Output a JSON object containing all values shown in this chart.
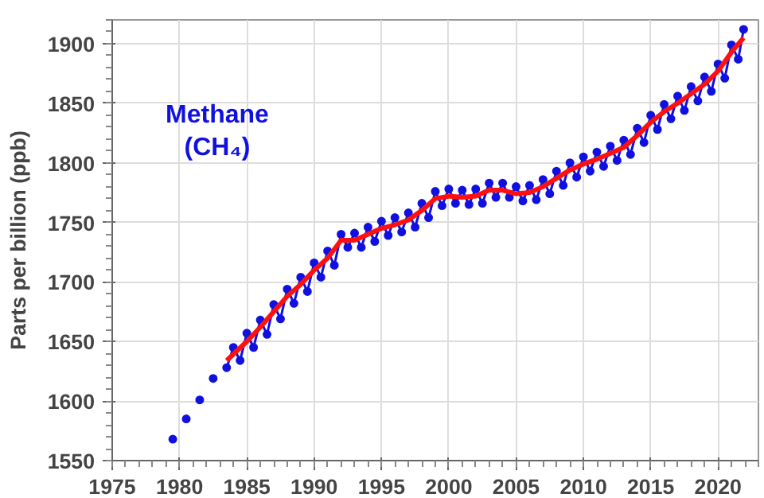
{
  "chart_data": {
    "type": "line",
    "ylabel": "Parts per billion (ppb)",
    "annotations": [
      "Methane\n(CH₄)"
    ],
    "xlim": [
      1975,
      2023
    ],
    "xticks": [
      1975,
      1980,
      1985,
      1990,
      1995,
      2000,
      2005,
      2010,
      2015,
      2020
    ],
    "ylim": [
      1550,
      1920
    ],
    "yticks": [
      1550,
      1600,
      1650,
      1700,
      1750,
      1800,
      1850,
      1900
    ],
    "grid": true,
    "series": [
      {
        "type": "scatter",
        "color": "#1010e0",
        "marker": "circle",
        "x": [
          1979.5,
          1980.5,
          1981.5,
          1982.5
        ],
        "values": [
          1568,
          1585,
          1601,
          1619
        ]
      },
      {
        "color": "#1010e0",
        "marker": "circle",
        "x": [
          1983.5,
          1984.0,
          1984.5,
          1985.0,
          1985.5,
          1986.0,
          1986.5,
          1987.0,
          1987.5,
          1988.0,
          1988.5,
          1989.0,
          1989.5,
          1990.0,
          1990.5,
          1991.0,
          1991.5,
          1992.0,
          1992.5,
          1993.0,
          1993.5,
          1994.0,
          1994.5,
          1995.0,
          1995.5,
          1996.0,
          1996.5,
          1997.0,
          1997.5,
          1998.0,
          1998.5,
          1999.0,
          1999.5,
          2000.0,
          2000.5,
          2001.0,
          2001.5,
          2002.0,
          2002.5,
          2003.0,
          2003.5,
          2004.0,
          2004.5,
          2005.0,
          2005.5,
          2006.0,
          2006.5,
          2007.0,
          2007.5,
          2008.0,
          2008.5,
          2009.0,
          2009.5,
          2010.0,
          2010.5,
          2011.0,
          2011.5,
          2012.0,
          2012.5,
          2013.0,
          2013.5,
          2014.0,
          2014.5,
          2015.0,
          2015.5,
          2016.0,
          2016.5,
          2017.0,
          2017.5,
          2018.0,
          2018.5,
          2019.0,
          2019.5,
          2020.0,
          2020.5,
          2021.0,
          2021.5,
          2021.9
        ],
        "values": [
          1628,
          1645,
          1634,
          1657,
          1645,
          1668,
          1656,
          1681,
          1669,
          1694,
          1682,
          1704,
          1692,
          1716,
          1704,
          1726,
          1714,
          1740,
          1729,
          1741,
          1729,
          1746,
          1734,
          1751,
          1739,
          1754,
          1742,
          1758,
          1746,
          1766,
          1754,
          1776,
          1764,
          1778,
          1766,
          1777,
          1765,
          1778,
          1766,
          1783,
          1771,
          1783,
          1771,
          1780,
          1768,
          1781,
          1769,
          1786,
          1774,
          1793,
          1781,
          1800,
          1788,
          1805,
          1793,
          1809,
          1797,
          1814,
          1802,
          1819,
          1807,
          1829,
          1817,
          1840,
          1828,
          1849,
          1837,
          1856,
          1844,
          1864,
          1852,
          1872,
          1860,
          1883,
          1871,
          1899,
          1887,
          1912
        ]
      },
      {
        "color": "#ff1010",
        "marker": "none",
        "x": [
          1983.5,
          1985,
          1986,
          1987,
          1988,
          1989,
          1990,
          1991,
          1992,
          1993,
          1994,
          1995,
          1996,
          1997,
          1998,
          1999,
          2000,
          2001,
          2002,
          2003,
          2004,
          2005,
          2006,
          2007,
          2008,
          2009,
          2010,
          2011,
          2012,
          2013,
          2014,
          2015,
          2016,
          2017,
          2018,
          2019,
          2020,
          2021,
          2021.9
        ],
        "values": [
          1634,
          1650,
          1662,
          1675,
          1688,
          1698,
          1710,
          1720,
          1735,
          1735,
          1740,
          1745,
          1748,
          1752,
          1760,
          1770,
          1772,
          1771,
          1772,
          1777,
          1777,
          1774,
          1775,
          1780,
          1787,
          1794,
          1799,
          1803,
          1808,
          1813,
          1823,
          1834,
          1843,
          1850,
          1858,
          1866,
          1877,
          1893,
          1905
        ]
      }
    ]
  }
}
